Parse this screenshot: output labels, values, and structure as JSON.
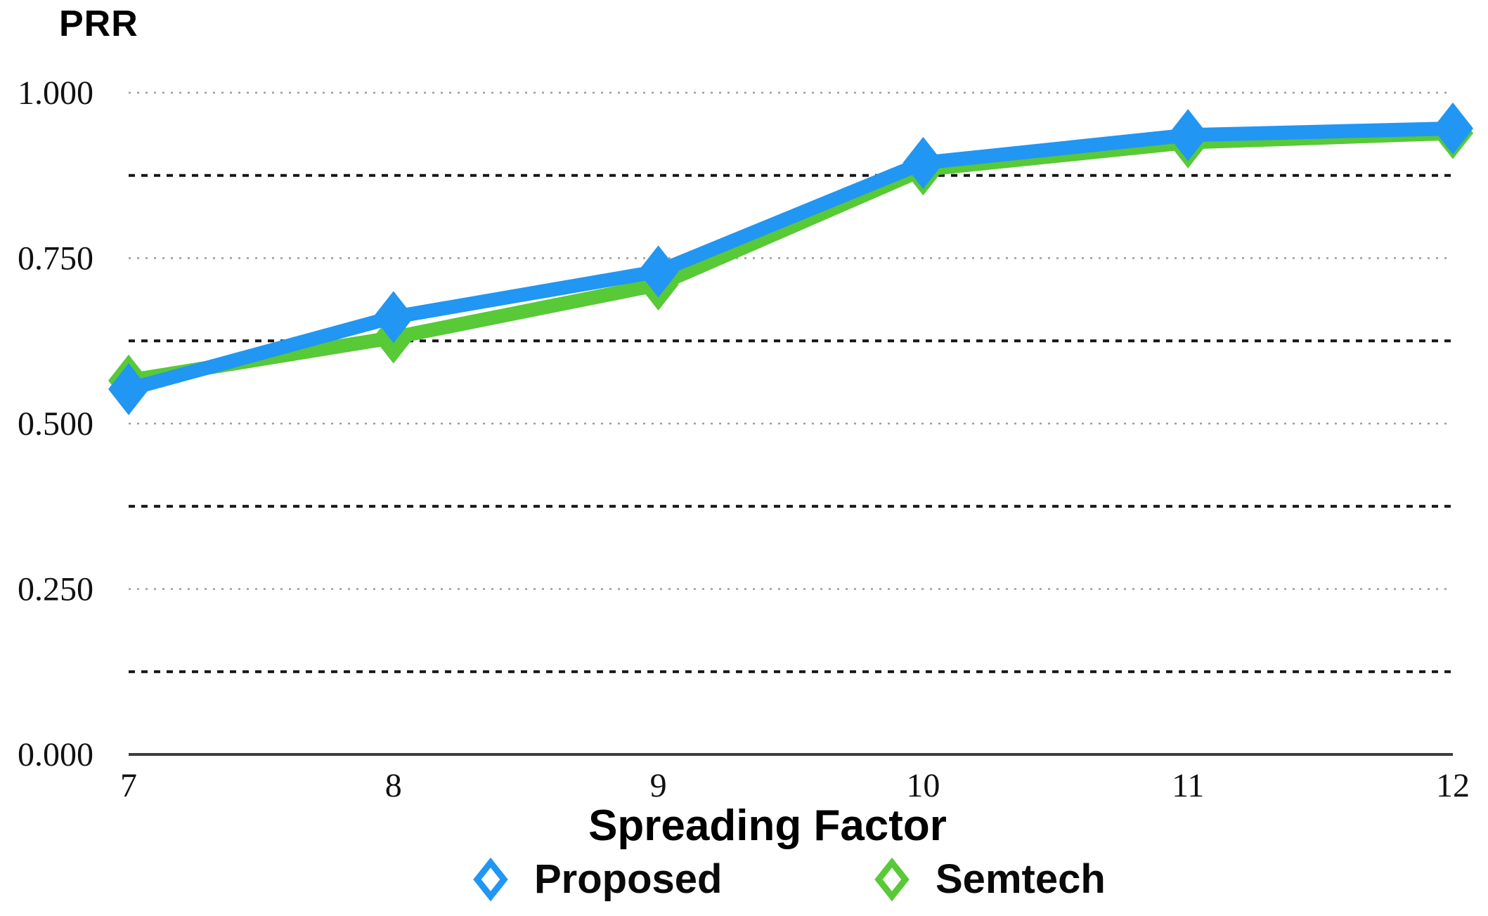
{
  "title": "PRR",
  "chart_data": {
    "type": "line",
    "title": "PRR",
    "xlabel": "Spreading Factor",
    "ylabel": "PRR",
    "x": [
      7,
      8,
      9,
      10,
      11,
      12
    ],
    "x_tick_labels": [
      "7",
      "8",
      "9",
      "10",
      "11",
      "12"
    ],
    "ylim": [
      0.0,
      1.0
    ],
    "y_major_ticks": [
      {
        "label": "1.000",
        "value": 1.0
      },
      {
        "label": "0.750",
        "value": 0.75
      },
      {
        "label": "0.500",
        "value": 0.5
      },
      {
        "label": "0.250",
        "value": 0.25
      },
      {
        "label": "0.000",
        "value": 0.0
      }
    ],
    "y_minor_gridlines": [
      0.875,
      0.625,
      0.375,
      0.125
    ],
    "grid": "horizontal dotted; light dotted at major ticks, dark dashed at minors",
    "series": [
      {
        "name": "Semtech",
        "color": "#58C937",
        "marker": "diamond",
        "values": [
          0.565,
          0.63,
          0.71,
          0.884,
          0.925,
          0.939
        ]
      },
      {
        "name": "Proposed",
        "color": "#2196F3",
        "marker": "diamond",
        "values": [
          0.552,
          0.661,
          0.73,
          0.894,
          0.936,
          0.946
        ]
      }
    ],
    "legend": [
      {
        "label": "Proposed",
        "color": "#2196F3"
      },
      {
        "label": "Semtech",
        "color": "#58C937"
      }
    ],
    "legend_position": "bottom",
    "axis_color": "#3d3d3d",
    "minor_grid_color": "#161616",
    "major_grid_color": "#9c9c9c"
  }
}
